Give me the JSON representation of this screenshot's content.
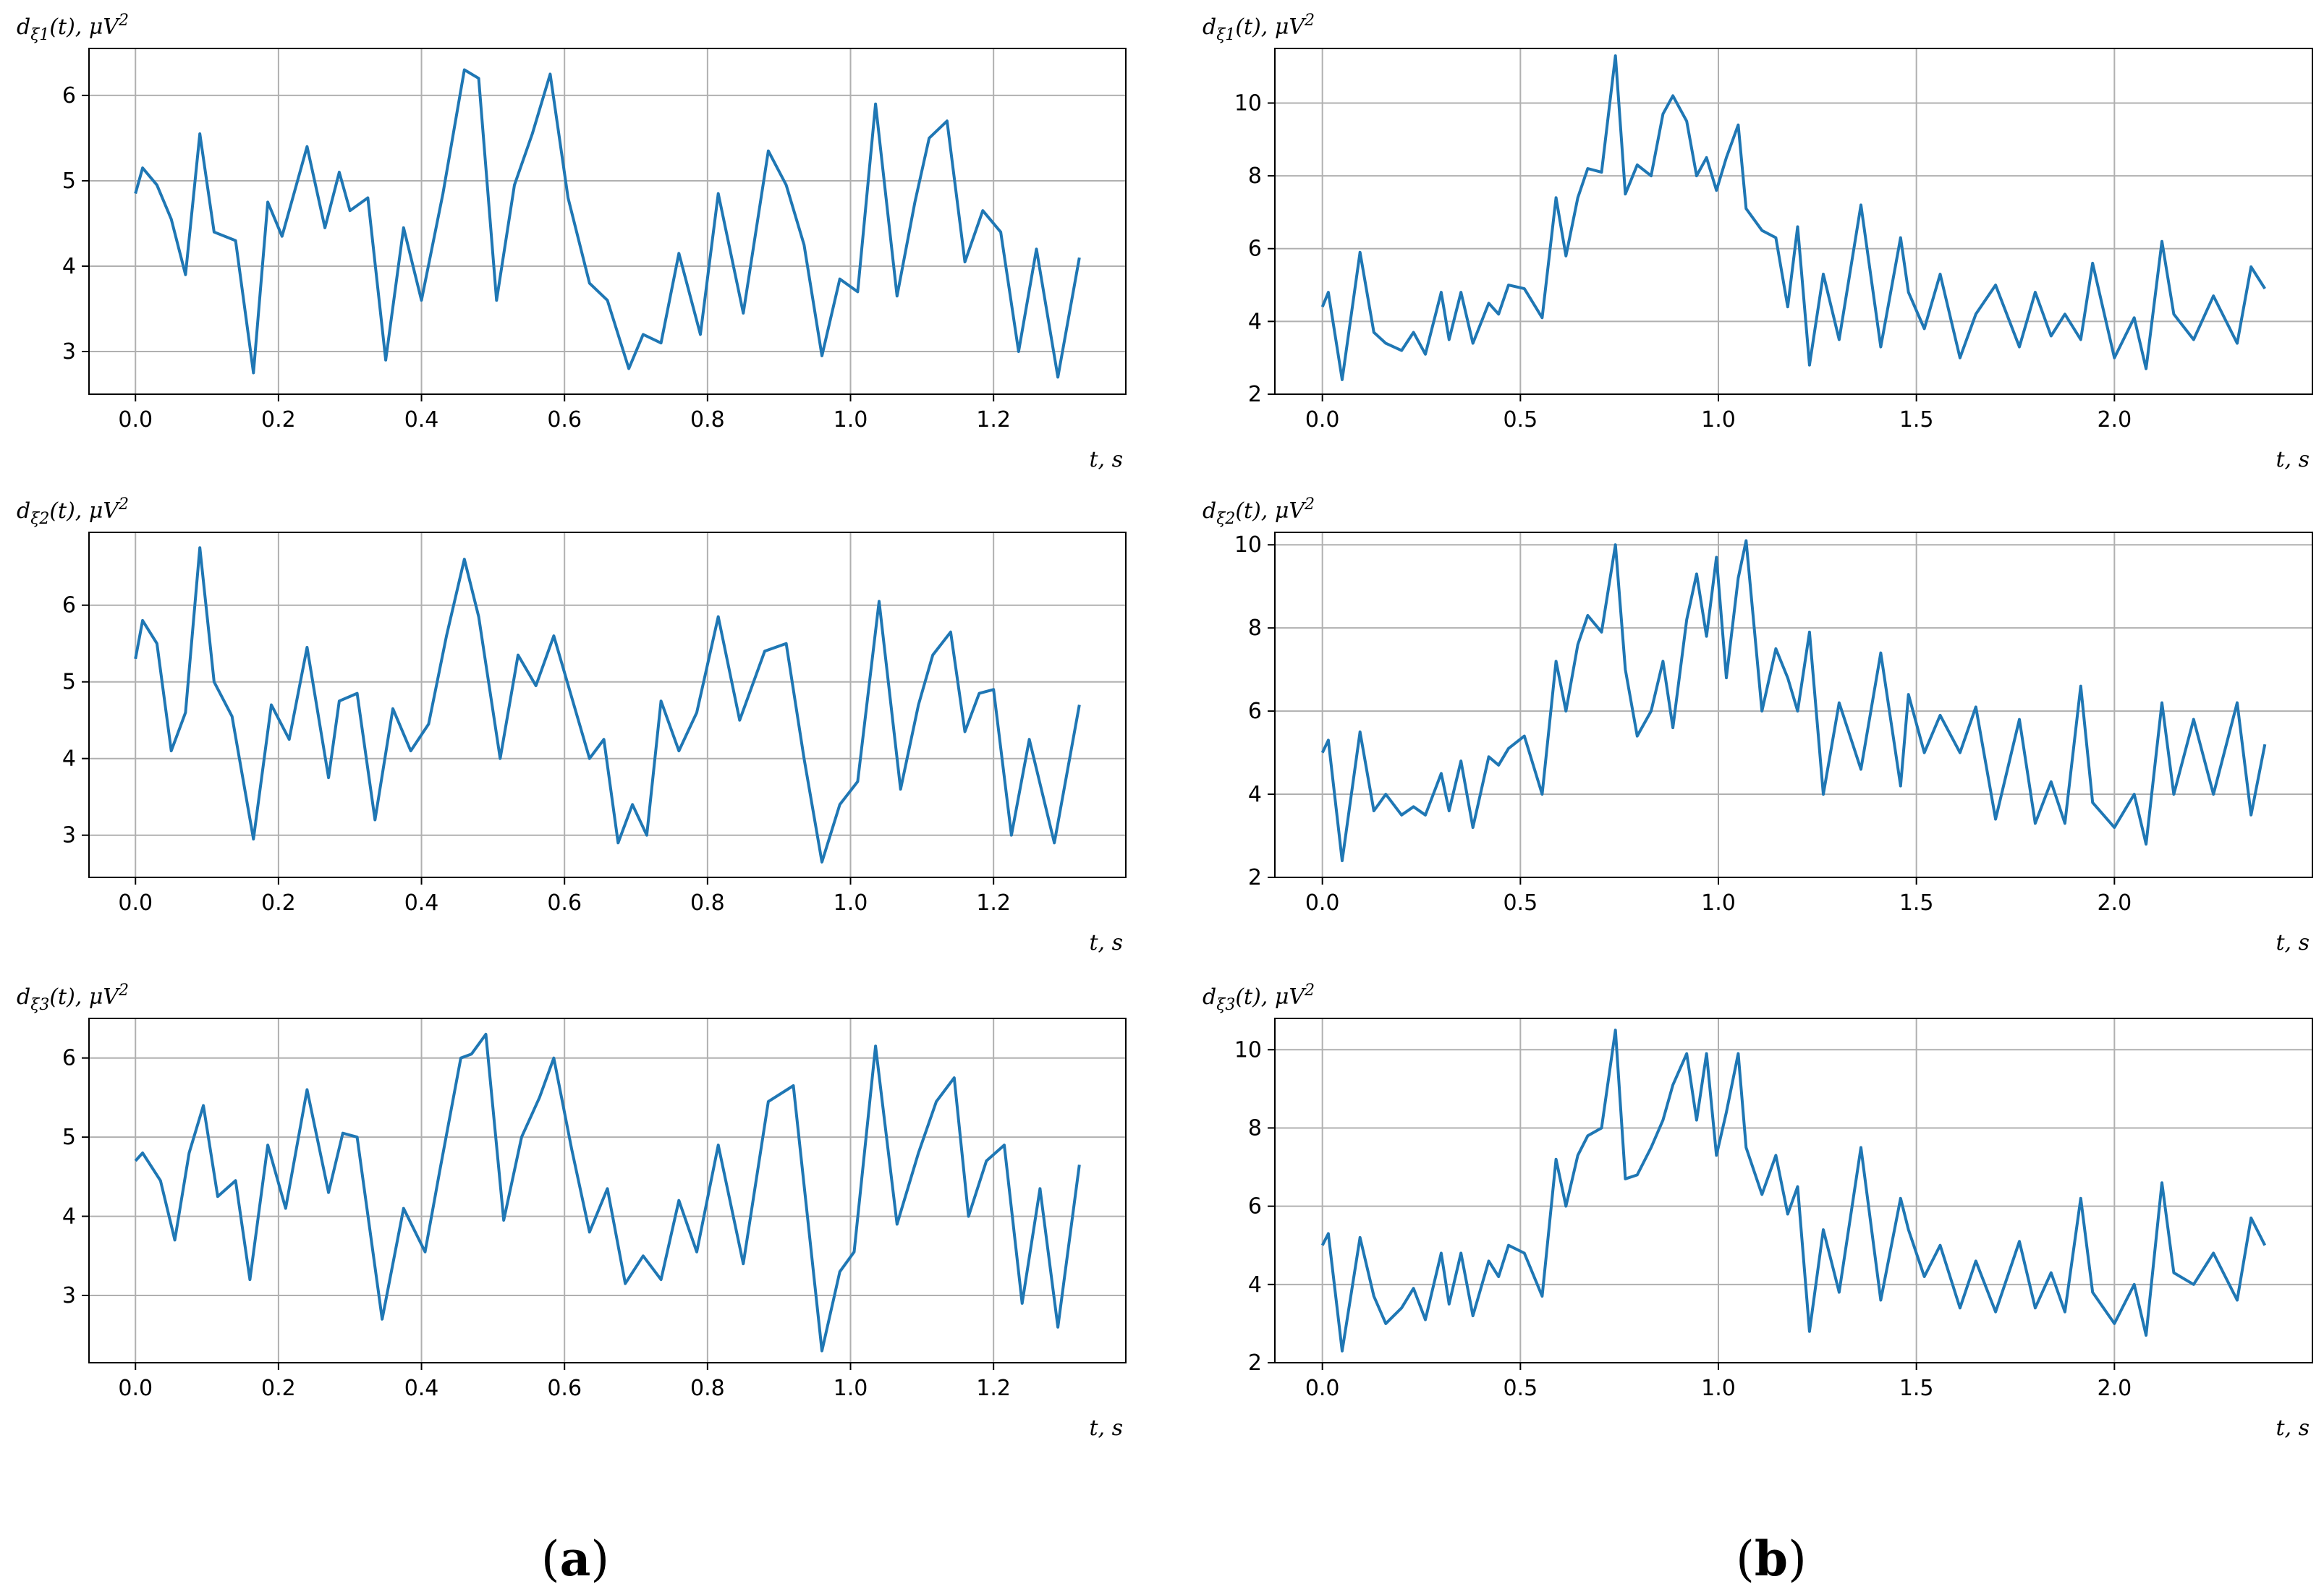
{
  "figure": {
    "panel_labels": [
      {
        "open": "(",
        "letter": "a",
        "close": ")"
      },
      {
        "open": "(",
        "letter": "b",
        "close": ")"
      }
    ],
    "line_color": "#1f77b4",
    "grid_color": "#b0b0b0"
  },
  "chart_data": [
    {
      "type": "line",
      "panel": "a",
      "row": 1,
      "ylabel_main": "d",
      "ylabel_sub": "ξ1",
      "ylabel_rest": "(t), μV",
      "ylabel_sup": "2",
      "xlabel": "t, s",
      "xlim": [
        -0.065,
        1.385
      ],
      "ylim": [
        2.5,
        6.55
      ],
      "xticks": [
        0.0,
        0.2,
        0.4,
        0.6,
        0.8,
        1.0,
        1.2
      ],
      "xtick_labels": [
        "0.0",
        "0.2",
        "0.4",
        "0.6",
        "0.8",
        "1.0",
        "1.2"
      ],
      "yticks": [
        3,
        4,
        5,
        6
      ],
      "ytick_labels": [
        "3",
        "4",
        "5",
        "6"
      ],
      "series": [
        {
          "name": "dξ1(t)",
          "x": [
            0.0,
            0.01,
            0.03,
            0.05,
            0.07,
            0.09,
            0.11,
            0.14,
            0.165,
            0.185,
            0.205,
            0.24,
            0.265,
            0.285,
            0.3,
            0.325,
            0.35,
            0.375,
            0.4,
            0.43,
            0.46,
            0.48,
            0.505,
            0.53,
            0.555,
            0.58,
            0.605,
            0.635,
            0.66,
            0.69,
            0.71,
            0.735,
            0.76,
            0.79,
            0.815,
            0.85,
            0.885,
            0.91,
            0.935,
            0.96,
            0.985,
            1.01,
            1.035,
            1.065,
            1.09,
            1.11,
            1.135,
            1.16,
            1.185,
            1.21,
            1.235,
            1.26,
            1.29,
            1.32
          ],
          "values": [
            4.85,
            5.15,
            4.95,
            4.55,
            3.9,
            5.55,
            4.4,
            4.3,
            2.75,
            4.75,
            4.35,
            5.4,
            4.45,
            5.1,
            4.65,
            4.8,
            2.9,
            4.45,
            3.6,
            4.85,
            6.3,
            6.2,
            3.6,
            4.95,
            5.55,
            6.25,
            4.8,
            3.8,
            3.6,
            2.8,
            3.2,
            3.1,
            4.15,
            3.2,
            4.85,
            3.45,
            5.35,
            4.95,
            4.25,
            2.95,
            3.85,
            3.7,
            5.9,
            3.65,
            4.75,
            5.5,
            5.7,
            4.05,
            4.65,
            4.4,
            3.0,
            4.2,
            2.7,
            4.1
          ]
        }
      ]
    },
    {
      "type": "line",
      "panel": "a",
      "row": 2,
      "ylabel_main": "d",
      "ylabel_sub": "ξ2",
      "ylabel_rest": "(t), μV",
      "ylabel_sup": "2",
      "xlabel": "t, s",
      "xlim": [
        -0.065,
        1.385
      ],
      "ylim": [
        2.45,
        6.95
      ],
      "xticks": [
        0.0,
        0.2,
        0.4,
        0.6,
        0.8,
        1.0,
        1.2
      ],
      "xtick_labels": [
        "0.0",
        "0.2",
        "0.4",
        "0.6",
        "0.8",
        "1.0",
        "1.2"
      ],
      "yticks": [
        3,
        4,
        5,
        6
      ],
      "ytick_labels": [
        "3",
        "4",
        "5",
        "6"
      ],
      "series": [
        {
          "name": "dξ2(t)",
          "x": [
            0.0,
            0.01,
            0.03,
            0.05,
            0.07,
            0.09,
            0.11,
            0.135,
            0.165,
            0.19,
            0.215,
            0.24,
            0.27,
            0.285,
            0.31,
            0.335,
            0.36,
            0.385,
            0.41,
            0.435,
            0.46,
            0.48,
            0.51,
            0.535,
            0.56,
            0.585,
            0.61,
            0.635,
            0.655,
            0.675,
            0.695,
            0.715,
            0.735,
            0.76,
            0.785,
            0.815,
            0.845,
            0.88,
            0.91,
            0.935,
            0.96,
            0.985,
            1.01,
            1.04,
            1.07,
            1.095,
            1.115,
            1.14,
            1.16,
            1.18,
            1.2,
            1.225,
            1.25,
            1.285,
            1.32
          ],
          "values": [
            5.3,
            5.8,
            5.5,
            4.1,
            4.6,
            6.75,
            5.0,
            4.55,
            2.95,
            4.7,
            4.25,
            5.45,
            3.75,
            4.75,
            4.85,
            3.2,
            4.65,
            4.1,
            4.45,
            5.6,
            6.6,
            5.85,
            4.0,
            5.35,
            4.95,
            5.6,
            4.8,
            4.0,
            4.25,
            2.9,
            3.4,
            3.0,
            4.75,
            4.1,
            4.6,
            5.85,
            4.5,
            5.4,
            5.5,
            4.0,
            2.65,
            3.4,
            3.7,
            6.05,
            3.6,
            4.7,
            5.35,
            5.65,
            4.35,
            4.85,
            4.9,
            3.0,
            4.25,
            2.9,
            4.7
          ]
        }
      ]
    },
    {
      "type": "line",
      "panel": "a",
      "row": 3,
      "ylabel_main": "d",
      "ylabel_sub": "ξ3",
      "ylabel_rest": "(t), μV",
      "ylabel_sup": "2",
      "xlabel": "t, s",
      "xlim": [
        -0.065,
        1.385
      ],
      "ylim": [
        2.15,
        6.5
      ],
      "xticks": [
        0.0,
        0.2,
        0.4,
        0.6,
        0.8,
        1.0,
        1.2
      ],
      "xtick_labels": [
        "0.0",
        "0.2",
        "0.4",
        "0.6",
        "0.8",
        "1.0",
        "1.2"
      ],
      "yticks": [
        3,
        4,
        5,
        6
      ],
      "ytick_labels": [
        "3",
        "4",
        "5",
        "6"
      ],
      "series": [
        {
          "name": "dξ3(t)",
          "x": [
            0.0,
            0.01,
            0.035,
            0.055,
            0.075,
            0.095,
            0.115,
            0.14,
            0.16,
            0.185,
            0.21,
            0.24,
            0.27,
            0.29,
            0.31,
            0.345,
            0.375,
            0.405,
            0.425,
            0.455,
            0.47,
            0.49,
            0.515,
            0.54,
            0.565,
            0.585,
            0.61,
            0.635,
            0.66,
            0.685,
            0.71,
            0.735,
            0.76,
            0.785,
            0.815,
            0.85,
            0.885,
            0.92,
            0.96,
            0.985,
            1.005,
            1.035,
            1.065,
            1.095,
            1.12,
            1.145,
            1.165,
            1.19,
            1.215,
            1.24,
            1.265,
            1.29,
            1.32
          ],
          "values": [
            4.7,
            4.8,
            4.45,
            3.7,
            4.8,
            5.4,
            4.25,
            4.45,
            3.2,
            4.9,
            4.1,
            5.6,
            4.3,
            5.05,
            5.0,
            2.7,
            4.1,
            3.55,
            4.55,
            6.0,
            6.05,
            6.3,
            3.95,
            5.0,
            5.5,
            6.0,
            4.85,
            3.8,
            4.35,
            3.15,
            3.5,
            3.2,
            4.2,
            3.55,
            4.9,
            3.4,
            5.45,
            5.65,
            2.3,
            3.3,
            3.55,
            6.15,
            3.9,
            4.8,
            5.45,
            5.75,
            4.0,
            4.7,
            4.9,
            2.9,
            4.35,
            2.6,
            4.65
          ]
        }
      ]
    },
    {
      "type": "line",
      "panel": "b",
      "row": 1,
      "ylabel_main": "d",
      "ylabel_sub": "ξ1",
      "ylabel_rest": "(t), μV",
      "ylabel_sup": "2",
      "xlabel": "t, s",
      "xlim": [
        -0.12,
        2.5
      ],
      "ylim": [
        2.0,
        11.5
      ],
      "xticks": [
        0.0,
        0.5,
        1.0,
        1.5,
        2.0
      ],
      "xtick_labels": [
        "0.0",
        "0.5",
        "1.0",
        "1.5",
        "2.0"
      ],
      "yticks": [
        2,
        4,
        6,
        8,
        10
      ],
      "ytick_labels": [
        "2",
        "4",
        "6",
        "8",
        "10"
      ],
      "series": [
        {
          "name": "dξ1(t)",
          "x": [
            0.0,
            0.015,
            0.05,
            0.095,
            0.13,
            0.16,
            0.2,
            0.23,
            0.26,
            0.3,
            0.32,
            0.35,
            0.38,
            0.42,
            0.445,
            0.47,
            0.51,
            0.555,
            0.59,
            0.615,
            0.645,
            0.67,
            0.705,
            0.74,
            0.765,
            0.795,
            0.83,
            0.86,
            0.885,
            0.92,
            0.945,
            0.97,
            0.995,
            1.02,
            1.05,
            1.07,
            1.11,
            1.145,
            1.175,
            1.2,
            1.23,
            1.265,
            1.305,
            1.36,
            1.41,
            1.46,
            1.48,
            1.52,
            1.56,
            1.61,
            1.65,
            1.7,
            1.76,
            1.8,
            1.84,
            1.875,
            1.915,
            1.945,
            2.0,
            2.05,
            2.08,
            2.12,
            2.15,
            2.2,
            2.25,
            2.31,
            2.345,
            2.38
          ],
          "values": [
            4.4,
            4.8,
            2.4,
            5.9,
            3.7,
            3.4,
            3.2,
            3.7,
            3.1,
            4.8,
            3.5,
            4.8,
            3.4,
            4.5,
            4.2,
            5.0,
            4.9,
            4.1,
            7.4,
            5.8,
            7.4,
            8.2,
            8.1,
            11.3,
            7.5,
            8.3,
            8.0,
            9.7,
            10.2,
            9.5,
            8.0,
            8.5,
            7.6,
            8.5,
            9.4,
            7.1,
            6.5,
            6.3,
            4.4,
            6.6,
            2.8,
            5.3,
            3.5,
            7.2,
            3.3,
            6.3,
            4.8,
            3.8,
            5.3,
            3.0,
            4.2,
            5.0,
            3.3,
            4.8,
            3.6,
            4.2,
            3.5,
            5.6,
            3.0,
            4.1,
            2.7,
            6.2,
            4.2,
            3.5,
            4.7,
            3.4,
            5.5,
            4.9
          ]
        }
      ]
    },
    {
      "type": "line",
      "panel": "b",
      "row": 2,
      "ylabel_main": "d",
      "ylabel_sub": "ξ2",
      "ylabel_rest": "(t), μV",
      "ylabel_sup": "2",
      "xlabel": "t, s",
      "xlim": [
        -0.12,
        2.5
      ],
      "ylim": [
        2.0,
        10.3
      ],
      "xticks": [
        0.0,
        0.5,
        1.0,
        1.5,
        2.0
      ],
      "xtick_labels": [
        "0.0",
        "0.5",
        "1.0",
        "1.5",
        "2.0"
      ],
      "yticks": [
        2,
        4,
        6,
        8,
        10
      ],
      "ytick_labels": [
        "2",
        "4",
        "6",
        "8",
        "10"
      ],
      "series": [
        {
          "name": "dξ2(t)",
          "x": [
            0.0,
            0.015,
            0.05,
            0.095,
            0.13,
            0.16,
            0.2,
            0.23,
            0.26,
            0.3,
            0.32,
            0.35,
            0.38,
            0.42,
            0.445,
            0.47,
            0.51,
            0.555,
            0.59,
            0.615,
            0.645,
            0.67,
            0.705,
            0.74,
            0.765,
            0.795,
            0.83,
            0.86,
            0.885,
            0.92,
            0.945,
            0.97,
            0.995,
            1.02,
            1.05,
            1.07,
            1.11,
            1.145,
            1.175,
            1.2,
            1.23,
            1.265,
            1.305,
            1.36,
            1.41,
            1.46,
            1.48,
            1.52,
            1.56,
            1.61,
            1.65,
            1.7,
            1.76,
            1.8,
            1.84,
            1.875,
            1.915,
            1.945,
            2.0,
            2.05,
            2.08,
            2.12,
            2.15,
            2.2,
            2.25,
            2.31,
            2.345,
            2.38
          ],
          "values": [
            5.0,
            5.3,
            2.4,
            5.5,
            3.6,
            4.0,
            3.5,
            3.7,
            3.5,
            4.5,
            3.6,
            4.8,
            3.2,
            4.9,
            4.7,
            5.1,
            5.4,
            4.0,
            7.2,
            6.0,
            7.6,
            8.3,
            7.9,
            10.0,
            7.0,
            5.4,
            6.0,
            7.2,
            5.6,
            8.2,
            9.3,
            7.8,
            9.7,
            6.8,
            9.2,
            10.1,
            6.0,
            7.5,
            6.8,
            6.0,
            7.9,
            4.0,
            6.2,
            4.6,
            7.4,
            4.2,
            6.4,
            5.0,
            5.9,
            5.0,
            6.1,
            3.4,
            5.8,
            3.3,
            4.3,
            3.3,
            6.6,
            3.8,
            3.2,
            4.0,
            2.8,
            6.2,
            4.0,
            5.8,
            4.0,
            6.2,
            3.5,
            5.2
          ]
        }
      ]
    },
    {
      "type": "line",
      "panel": "b",
      "row": 3,
      "ylabel_main": "d",
      "ylabel_sub": "ξ3",
      "ylabel_rest": "(t), μV",
      "ylabel_sup": "2",
      "xlabel": "t, s",
      "xlim": [
        -0.12,
        2.5
      ],
      "ylim": [
        2.0,
        10.8
      ],
      "xticks": [
        0.0,
        0.5,
        1.0,
        1.5,
        2.0
      ],
      "xtick_labels": [
        "0.0",
        "0.5",
        "1.0",
        "1.5",
        "2.0"
      ],
      "yticks": [
        2,
        4,
        6,
        8,
        10
      ],
      "ytick_labels": [
        "2",
        "4",
        "6",
        "8",
        "10"
      ],
      "series": [
        {
          "name": "dξ3(t)",
          "x": [
            0.0,
            0.015,
            0.05,
            0.095,
            0.13,
            0.16,
            0.2,
            0.23,
            0.26,
            0.3,
            0.32,
            0.35,
            0.38,
            0.42,
            0.445,
            0.47,
            0.51,
            0.555,
            0.59,
            0.615,
            0.645,
            0.67,
            0.705,
            0.74,
            0.765,
            0.795,
            0.83,
            0.86,
            0.885,
            0.92,
            0.945,
            0.97,
            0.995,
            1.02,
            1.05,
            1.07,
            1.11,
            1.145,
            1.175,
            1.2,
            1.23,
            1.265,
            1.305,
            1.36,
            1.41,
            1.46,
            1.48,
            1.52,
            1.56,
            1.61,
            1.65,
            1.7,
            1.76,
            1.8,
            1.84,
            1.875,
            1.915,
            1.945,
            2.0,
            2.05,
            2.08,
            2.12,
            2.15,
            2.2,
            2.25,
            2.31,
            2.345,
            2.38
          ],
          "values": [
            5.0,
            5.3,
            2.3,
            5.2,
            3.7,
            3.0,
            3.4,
            3.9,
            3.1,
            4.8,
            3.5,
            4.8,
            3.2,
            4.6,
            4.2,
            5.0,
            4.8,
            3.7,
            7.2,
            6.0,
            7.3,
            7.8,
            8.0,
            10.5,
            6.7,
            6.8,
            7.5,
            8.2,
            9.1,
            9.9,
            8.2,
            9.9,
            7.3,
            8.4,
            9.9,
            7.5,
            6.3,
            7.3,
            5.8,
            6.5,
            2.8,
            5.4,
            3.8,
            7.5,
            3.6,
            6.2,
            5.4,
            4.2,
            5.0,
            3.4,
            4.6,
            3.3,
            5.1,
            3.4,
            4.3,
            3.3,
            6.2,
            3.8,
            3.0,
            4.0,
            2.7,
            6.6,
            4.3,
            4.0,
            4.8,
            3.6,
            5.7,
            5.0
          ]
        }
      ]
    }
  ]
}
